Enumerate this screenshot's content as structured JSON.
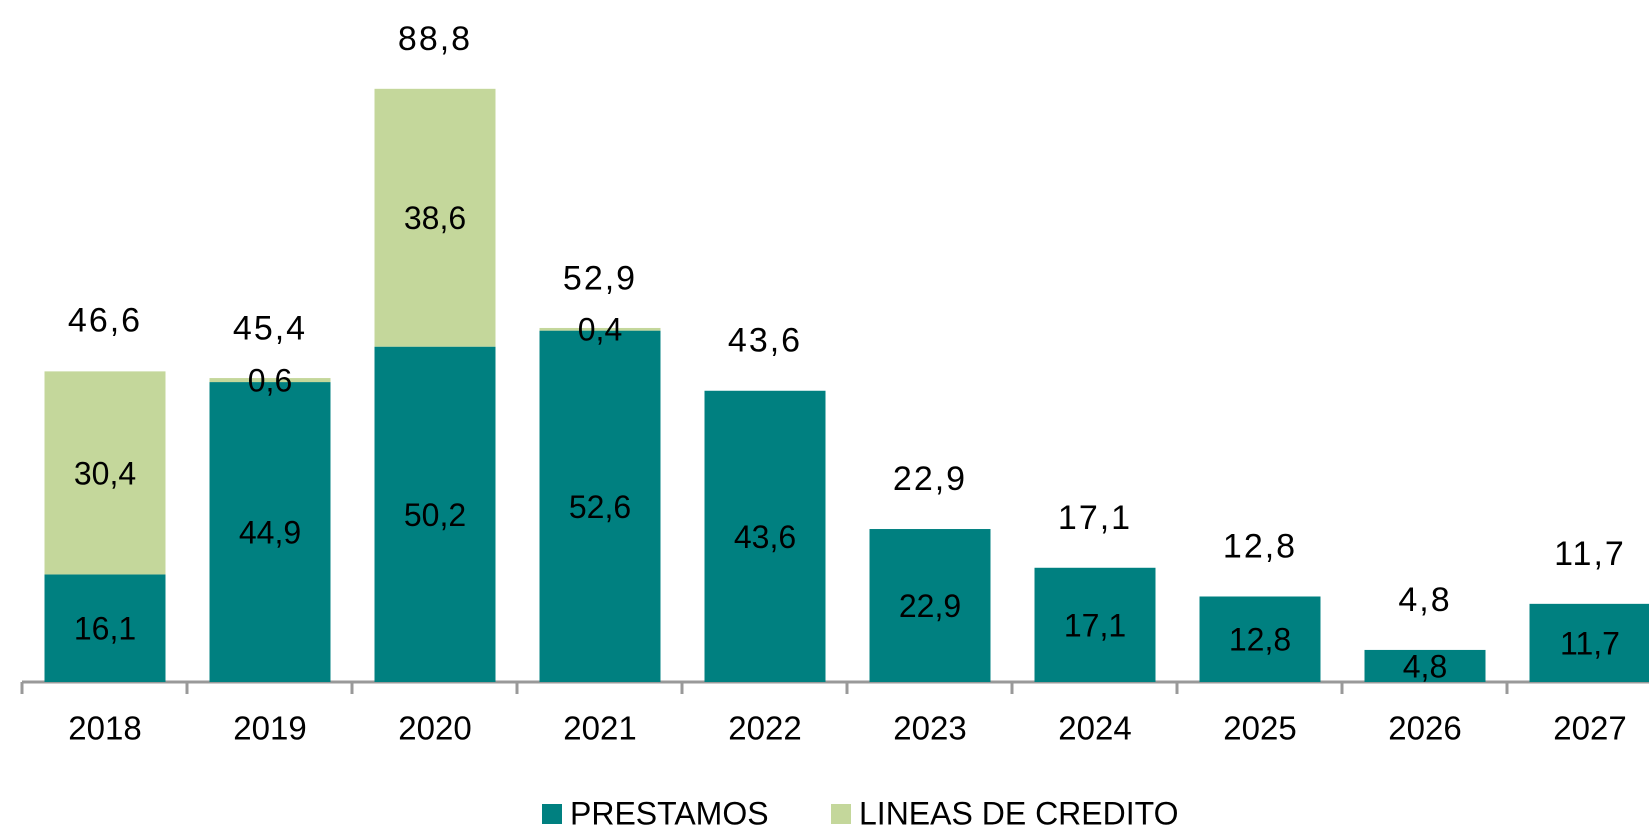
{
  "chart_data": {
    "type": "stacked_bar",
    "categories": [
      "2018",
      "2019",
      "2020",
      "2021",
      "2022",
      "2023",
      "2024",
      "2025",
      "2026",
      "2027"
    ],
    "series": [
      {
        "name": "PRESTAMOS",
        "color": "#008080",
        "values": [
          16.1,
          44.9,
          50.2,
          52.6,
          43.6,
          22.9,
          17.1,
          12.8,
          4.8,
          11.7
        ],
        "value_labels": [
          "16,1",
          "44,9",
          "50,2",
          "52,6",
          "43,6",
          "22,9",
          "17,1",
          "12,8",
          "4,8",
          "11,7"
        ]
      },
      {
        "name": "LINEAS DE CREDITO",
        "color": "#c4d79b",
        "values": [
          30.4,
          0.6,
          38.6,
          0.4,
          null,
          null,
          null,
          null,
          null,
          null
        ],
        "value_labels": [
          "30,4",
          "0,6",
          "38,6",
          "0,4",
          null,
          null,
          null,
          null,
          null,
          null
        ]
      }
    ],
    "totals": [
      46.6,
      45.4,
      88.8,
      52.9,
      43.6,
      22.9,
      17.1,
      12.8,
      4.8,
      11.7
    ],
    "total_labels": [
      "46,6",
      "45,4",
      "88,8",
      "52,9",
      "43,6",
      "22,9",
      "17,1",
      "12,8",
      "4,8",
      "11,7"
    ],
    "ylim": [
      0,
      100
    ]
  }
}
